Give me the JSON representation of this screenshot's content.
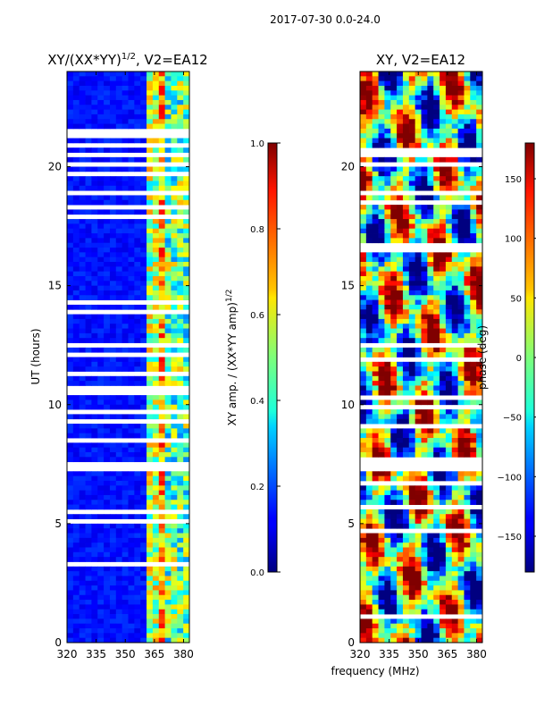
{
  "chart_data": {
    "suptitle": "2017-07-30 0.0-24.0",
    "xlabel_shared": "frequency (MHz)",
    "panels": [
      {
        "type": "heatmap",
        "title_main": "XY/(XX*YY)",
        "title_sup": "1/2",
        "title_tail": ", V2=EA12",
        "ylabel": "UT (hours)",
        "xlim": [
          320,
          383
        ],
        "ylim": [
          0,
          24
        ],
        "xticks": [
          320,
          335,
          350,
          365,
          380
        ],
        "yticks": [
          0,
          5,
          10,
          15,
          20
        ],
        "colorbar": {
          "label_main": "XY amp. / (XX*YY amp)",
          "label_sup": "1/2",
          "range": [
            0.0,
            1.0
          ],
          "ticks": [
            "0.0",
            "0.2",
            "0.4",
            "0.6",
            "0.8",
            "1.0"
          ],
          "tick_values": [
            0.0,
            0.2,
            0.4,
            0.6,
            0.8,
            1.0
          ]
        }
      },
      {
        "type": "heatmap",
        "title": "XY, V2=EA12",
        "xlim": [
          320,
          383
        ],
        "ylim": [
          0,
          24
        ],
        "xticks": [
          320,
          335,
          350,
          365,
          380
        ],
        "yticks": [
          0,
          5,
          10,
          15,
          20
        ],
        "colorbar": {
          "label": "phase (deg)",
          "range": [
            -180,
            180
          ],
          "ticks": [
            "150",
            "100",
            "50",
            "0",
            "−50",
            "−100",
            "−150"
          ],
          "tick_values": [
            150,
            100,
            50,
            0,
            -50,
            -100,
            -150
          ]
        }
      }
    ],
    "flagged_gaps_hours": [
      7.2,
      7.7
    ]
  }
}
